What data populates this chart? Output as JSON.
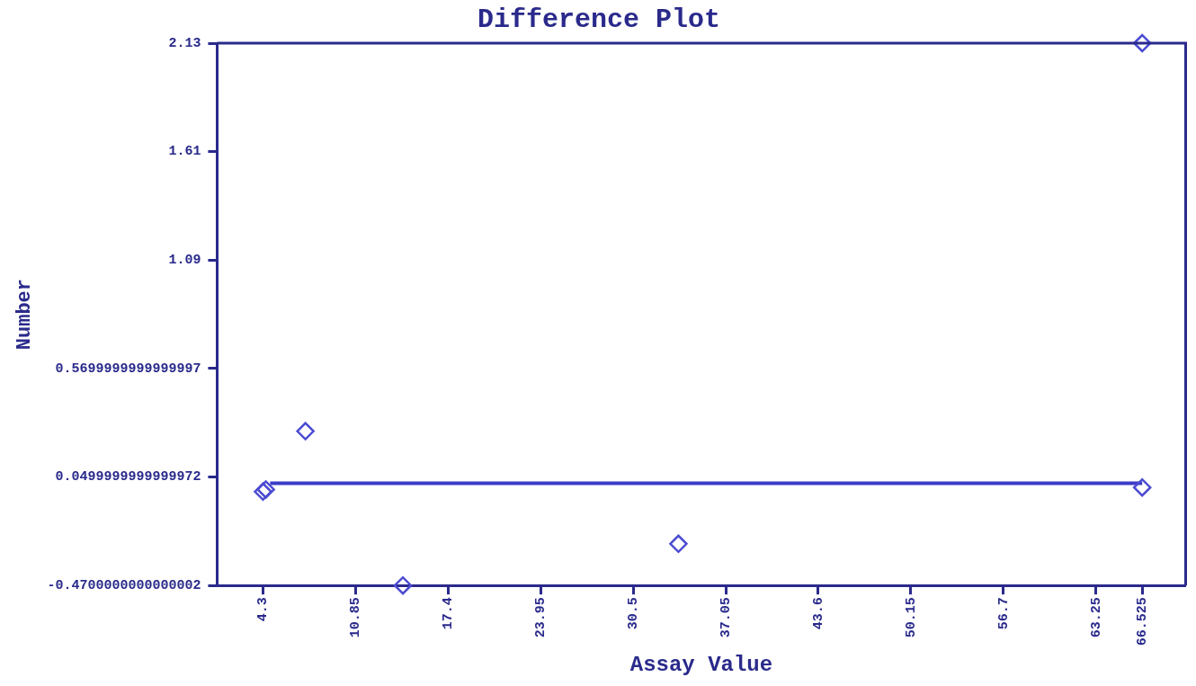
{
  "chart_data": {
    "type": "scatter",
    "title": "Difference Plot",
    "xlabel": "Assay Value",
    "ylabel": "Number",
    "series": [
      {
        "color": "#4b4bd2",
        "marker": "diamond",
        "x": [
          4.3,
          4.5,
          7.3,
          14.2,
          33.7,
          66.525,
          66.525
        ],
        "values": [
          -0.02,
          -0.01,
          0.27,
          -0.47,
          -0.27,
          2.13,
          0.0
        ]
      },
      {
        "type": "line",
        "color": "#3c3cc8",
        "marker": "none",
        "x": [
          4.8,
          66.525
        ],
        "values": [
          0.02,
          0.02
        ]
      }
    ],
    "xlim": [
      1.05,
      69.6
    ],
    "xticks": [
      4.3,
      10.85,
      17.4,
      23.95,
      30.5,
      37.05,
      43.6,
      50.15,
      56.7,
      63.25,
      66.525
    ],
    "ylim": [
      -0.47,
      2.13
    ],
    "yticks": [
      {
        "value": -0.47,
        "label": "-0.4700000000000002"
      },
      {
        "value": 0.05,
        "label": "0.0499999999999972"
      },
      {
        "value": 0.57,
        "label": "0.5699999999999997"
      },
      {
        "value": 1.09,
        "label": "1.09"
      },
      {
        "value": 1.61,
        "label": "1.61"
      },
      {
        "value": 2.13,
        "label": "2.13"
      }
    ],
    "grid": false,
    "legend": false,
    "line_style": "solid"
  }
}
